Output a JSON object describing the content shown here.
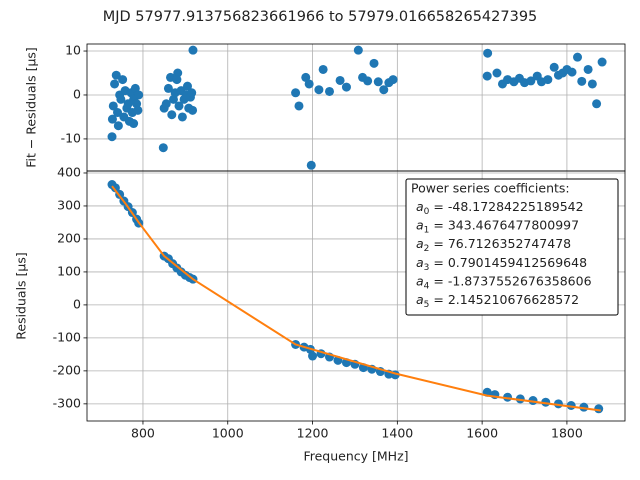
{
  "chart_data": [
    {
      "type": "scatter",
      "title": "MJD 57977.913756823661966 to 57979.016658265427395",
      "ylabel": "Fit − Residuals [μs]",
      "xlim": [
        668,
        1937
      ],
      "xticks": [
        800,
        1000,
        1200,
        1400,
        1600,
        1800
      ],
      "ylim": [
        -17.3,
        11.6
      ],
      "yticks": [
        -10,
        0,
        10
      ],
      "grid": true,
      "color": "#1f77b4",
      "x": [
        727,
        728,
        730,
        733,
        737,
        740,
        742,
        745,
        748,
        752,
        755,
        758,
        762,
        765,
        768,
        772,
        775,
        778,
        782,
        778,
        785,
        790,
        788,
        848,
        850,
        855,
        860,
        865,
        868,
        872,
        876,
        882,
        880,
        885,
        890,
        893,
        897,
        902,
        905,
        908,
        912,
        918,
        917,
        915,
        1160,
        1168,
        1184,
        1192,
        1197,
        1215,
        1225,
        1240,
        1265,
        1280,
        1308,
        1318,
        1330,
        1345,
        1355,
        1368,
        1380,
        1390,
        1613,
        1612,
        1635,
        1648,
        1660,
        1675,
        1688,
        1700,
        1715,
        1730,
        1740,
        1755,
        1770,
        1780,
        1790,
        1800,
        1812,
        1825,
        1835,
        1850,
        1860,
        1870,
        1883
      ],
      "values": [
        -9.5,
        -5.5,
        -2.5,
        2.5,
        4.5,
        -4,
        -7,
        0,
        -1,
        3.5,
        -5,
        1,
        -3,
        -2,
        -6,
        0.5,
        -4,
        -1,
        1.5,
        -6.5,
        -2,
        0,
        -3.5,
        -12,
        -3,
        -2,
        1.5,
        4,
        -4.5,
        -1,
        0.5,
        5,
        3.5,
        -2.5,
        1,
        -5,
        -1,
        0,
        2,
        -3,
        -0.5,
        10.2,
        -3.5,
        0.5,
        0.5,
        -2.5,
        4,
        2.5,
        -16,
        1.2,
        5.8,
        0.8,
        3.3,
        1.8,
        10.2,
        4,
        3.2,
        7.2,
        3,
        1.2,
        2.8,
        3.5,
        9.5,
        4.3,
        5,
        2.5,
        3.5,
        3,
        3.8,
        2.8,
        3.2,
        4.3,
        3,
        3.5,
        6.3,
        4.5,
        5,
        5.8,
        5.2,
        8.6,
        3.1,
        5.8,
        2.5,
        -2,
        7.5
      ]
    },
    {
      "type": "scatter",
      "xlabel": "Frequency [MHz]",
      "ylabel": "Residuals [μs]",
      "xlim": [
        668,
        1937
      ],
      "xticks": [
        800,
        1000,
        1200,
        1400,
        1600,
        1800
      ],
      "ylim": [
        -352,
        406
      ],
      "yticks": [
        -300,
        -200,
        -100,
        0,
        100,
        200,
        300,
        400
      ],
      "grid": true,
      "series": [
        {
          "type": "scatter",
          "color": "#1f77b4",
          "x": [
            727,
            735,
            745,
            755,
            765,
            775,
            785,
            790,
            850,
            860,
            870,
            880,
            890,
            900,
            910,
            918,
            1160,
            1180,
            1195,
            1200,
            1220,
            1240,
            1260,
            1280,
            1300,
            1320,
            1340,
            1360,
            1380,
            1395,
            1612,
            1630,
            1660,
            1690,
            1720,
            1750,
            1780,
            1810,
            1840,
            1875
          ],
          "values": [
            365,
            355,
            335,
            315,
            298,
            280,
            260,
            248,
            148,
            140,
            125,
            112,
            100,
            90,
            83,
            78,
            -120,
            -128,
            -135,
            -155,
            -148,
            -158,
            -168,
            -175,
            -180,
            -190,
            -195,
            -202,
            -210,
            -212,
            -265,
            -272,
            -280,
            -285,
            -290,
            -295,
            -300,
            -305,
            -310,
            -315
          ]
        },
        {
          "type": "line",
          "color": "#ff7f0e",
          "x": [
            727,
            760,
            790,
            850,
            918,
            1160,
            1395,
            1612,
            1880
          ],
          "values": [
            360,
            305,
            250,
            148,
            78,
            -120,
            -208,
            -275,
            -320
          ]
        }
      ],
      "legend": {
        "corner": "upper right",
        "title": "Power series coefficients:",
        "entries": [
          {
            "symbol": "a",
            "index": "0",
            "text": "= -48.17284225189542"
          },
          {
            "symbol": "a",
            "index": "1",
            "text": "= 343.4676477800997"
          },
          {
            "symbol": "a",
            "index": "2",
            "text": "= 76.7126352747478"
          },
          {
            "symbol": "a",
            "index": "3",
            "text": "= 0.7901459412569648"
          },
          {
            "symbol": "a",
            "index": "4",
            "text": "= -1.8737552676358606"
          },
          {
            "symbol": "a",
            "index": "5",
            "text": "= 2.145210676628572"
          }
        ]
      }
    }
  ]
}
